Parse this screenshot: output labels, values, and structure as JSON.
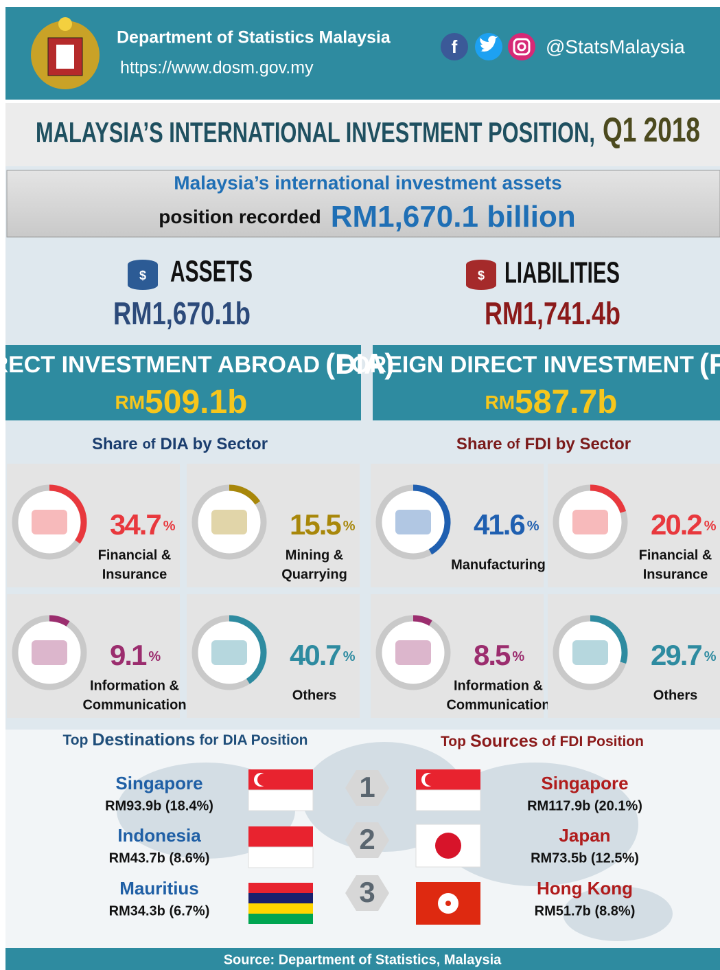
{
  "header": {
    "org": "Department of Statistics Malaysia",
    "url": "https://www.dosm.gov.my",
    "handle": "@StatsMalaysia"
  },
  "title": {
    "text": "MALAYSIA’S INTERNATIONAL INVESTMENT POSITION,",
    "period": "Q1 2018"
  },
  "headline": {
    "line1": "Malaysia’s international investment assets",
    "line2": "position recorded",
    "amount": "RM1,670.1 billion"
  },
  "assets": {
    "label": "ASSETS",
    "value": "RM1,670.1b"
  },
  "liabilities": {
    "label": "LIABILITIES",
    "value": "RM1,741.4b"
  },
  "dia": {
    "title": "DIRECT INVESTMENT ABROAD",
    "acronym": "(DIA)",
    "prefix": "RM",
    "value": "509.1b"
  },
  "fdi": {
    "title": "FOREIGN DIRECT INVESTMENT",
    "acronym": "(FDI)",
    "prefix": "RM",
    "value": "587.7b"
  },
  "dia_sectors": {
    "heading": [
      "Share",
      "of",
      "DIA by Sector"
    ],
    "items": [
      {
        "label": [
          "Financial &",
          "Insurance"
        ],
        "value": 34.7,
        "unit": "%",
        "color": "#e8383d"
      },
      {
        "label": [
          "Mining &",
          "Quarrying"
        ],
        "value": 15.5,
        "unit": "%",
        "color": "#a8870a"
      },
      {
        "label": [
          "Information &",
          "Communication"
        ],
        "value": 9.1,
        "unit": "%",
        "color": "#9b2d6e"
      },
      {
        "label": [
          "Others"
        ],
        "value": 40.7,
        "unit": "%",
        "color": "#2e8ba0"
      }
    ]
  },
  "fdi_sectors": {
    "heading": [
      "Share",
      "of",
      "FDI by Sector"
    ],
    "items": [
      {
        "label": [
          "Manufacturing"
        ],
        "value": 41.6,
        "unit": "%",
        "color": "#1f5fb0"
      },
      {
        "label": [
          "Financial &",
          "Insurance"
        ],
        "value": 20.2,
        "unit": "%",
        "color": "#e8383d"
      },
      {
        "label": [
          "Information &",
          "Communication"
        ],
        "value": 8.5,
        "unit": "%",
        "color": "#9b2d6e"
      },
      {
        "label": [
          "Others"
        ],
        "value": 29.7,
        "unit": "%",
        "color": "#2e8ba0"
      }
    ]
  },
  "destinations": {
    "heading": [
      "Top",
      "Destinations",
      "for",
      "DIA Position"
    ],
    "items": [
      {
        "name": "Singapore",
        "value": "RM93.9b (18.4%)"
      },
      {
        "name": "Indonesia",
        "value": "RM43.7b (8.6%)"
      },
      {
        "name": "Mauritius",
        "value": "RM34.3b (6.7%)"
      }
    ]
  },
  "ranks": [
    1,
    2,
    3
  ],
  "sources": {
    "heading": [
      "Top",
      "Sources",
      "of",
      "FDI Position"
    ],
    "items": [
      {
        "name": "Singapore",
        "value": "RM117.9b (20.1%)"
      },
      {
        "name": "Japan",
        "value": "RM73.5b (12.5%)"
      },
      {
        "name": "Hong Kong",
        "value": "RM51.7b (8.8%)"
      }
    ]
  },
  "footer": "Source: Department of Statistics, Malaysia"
}
